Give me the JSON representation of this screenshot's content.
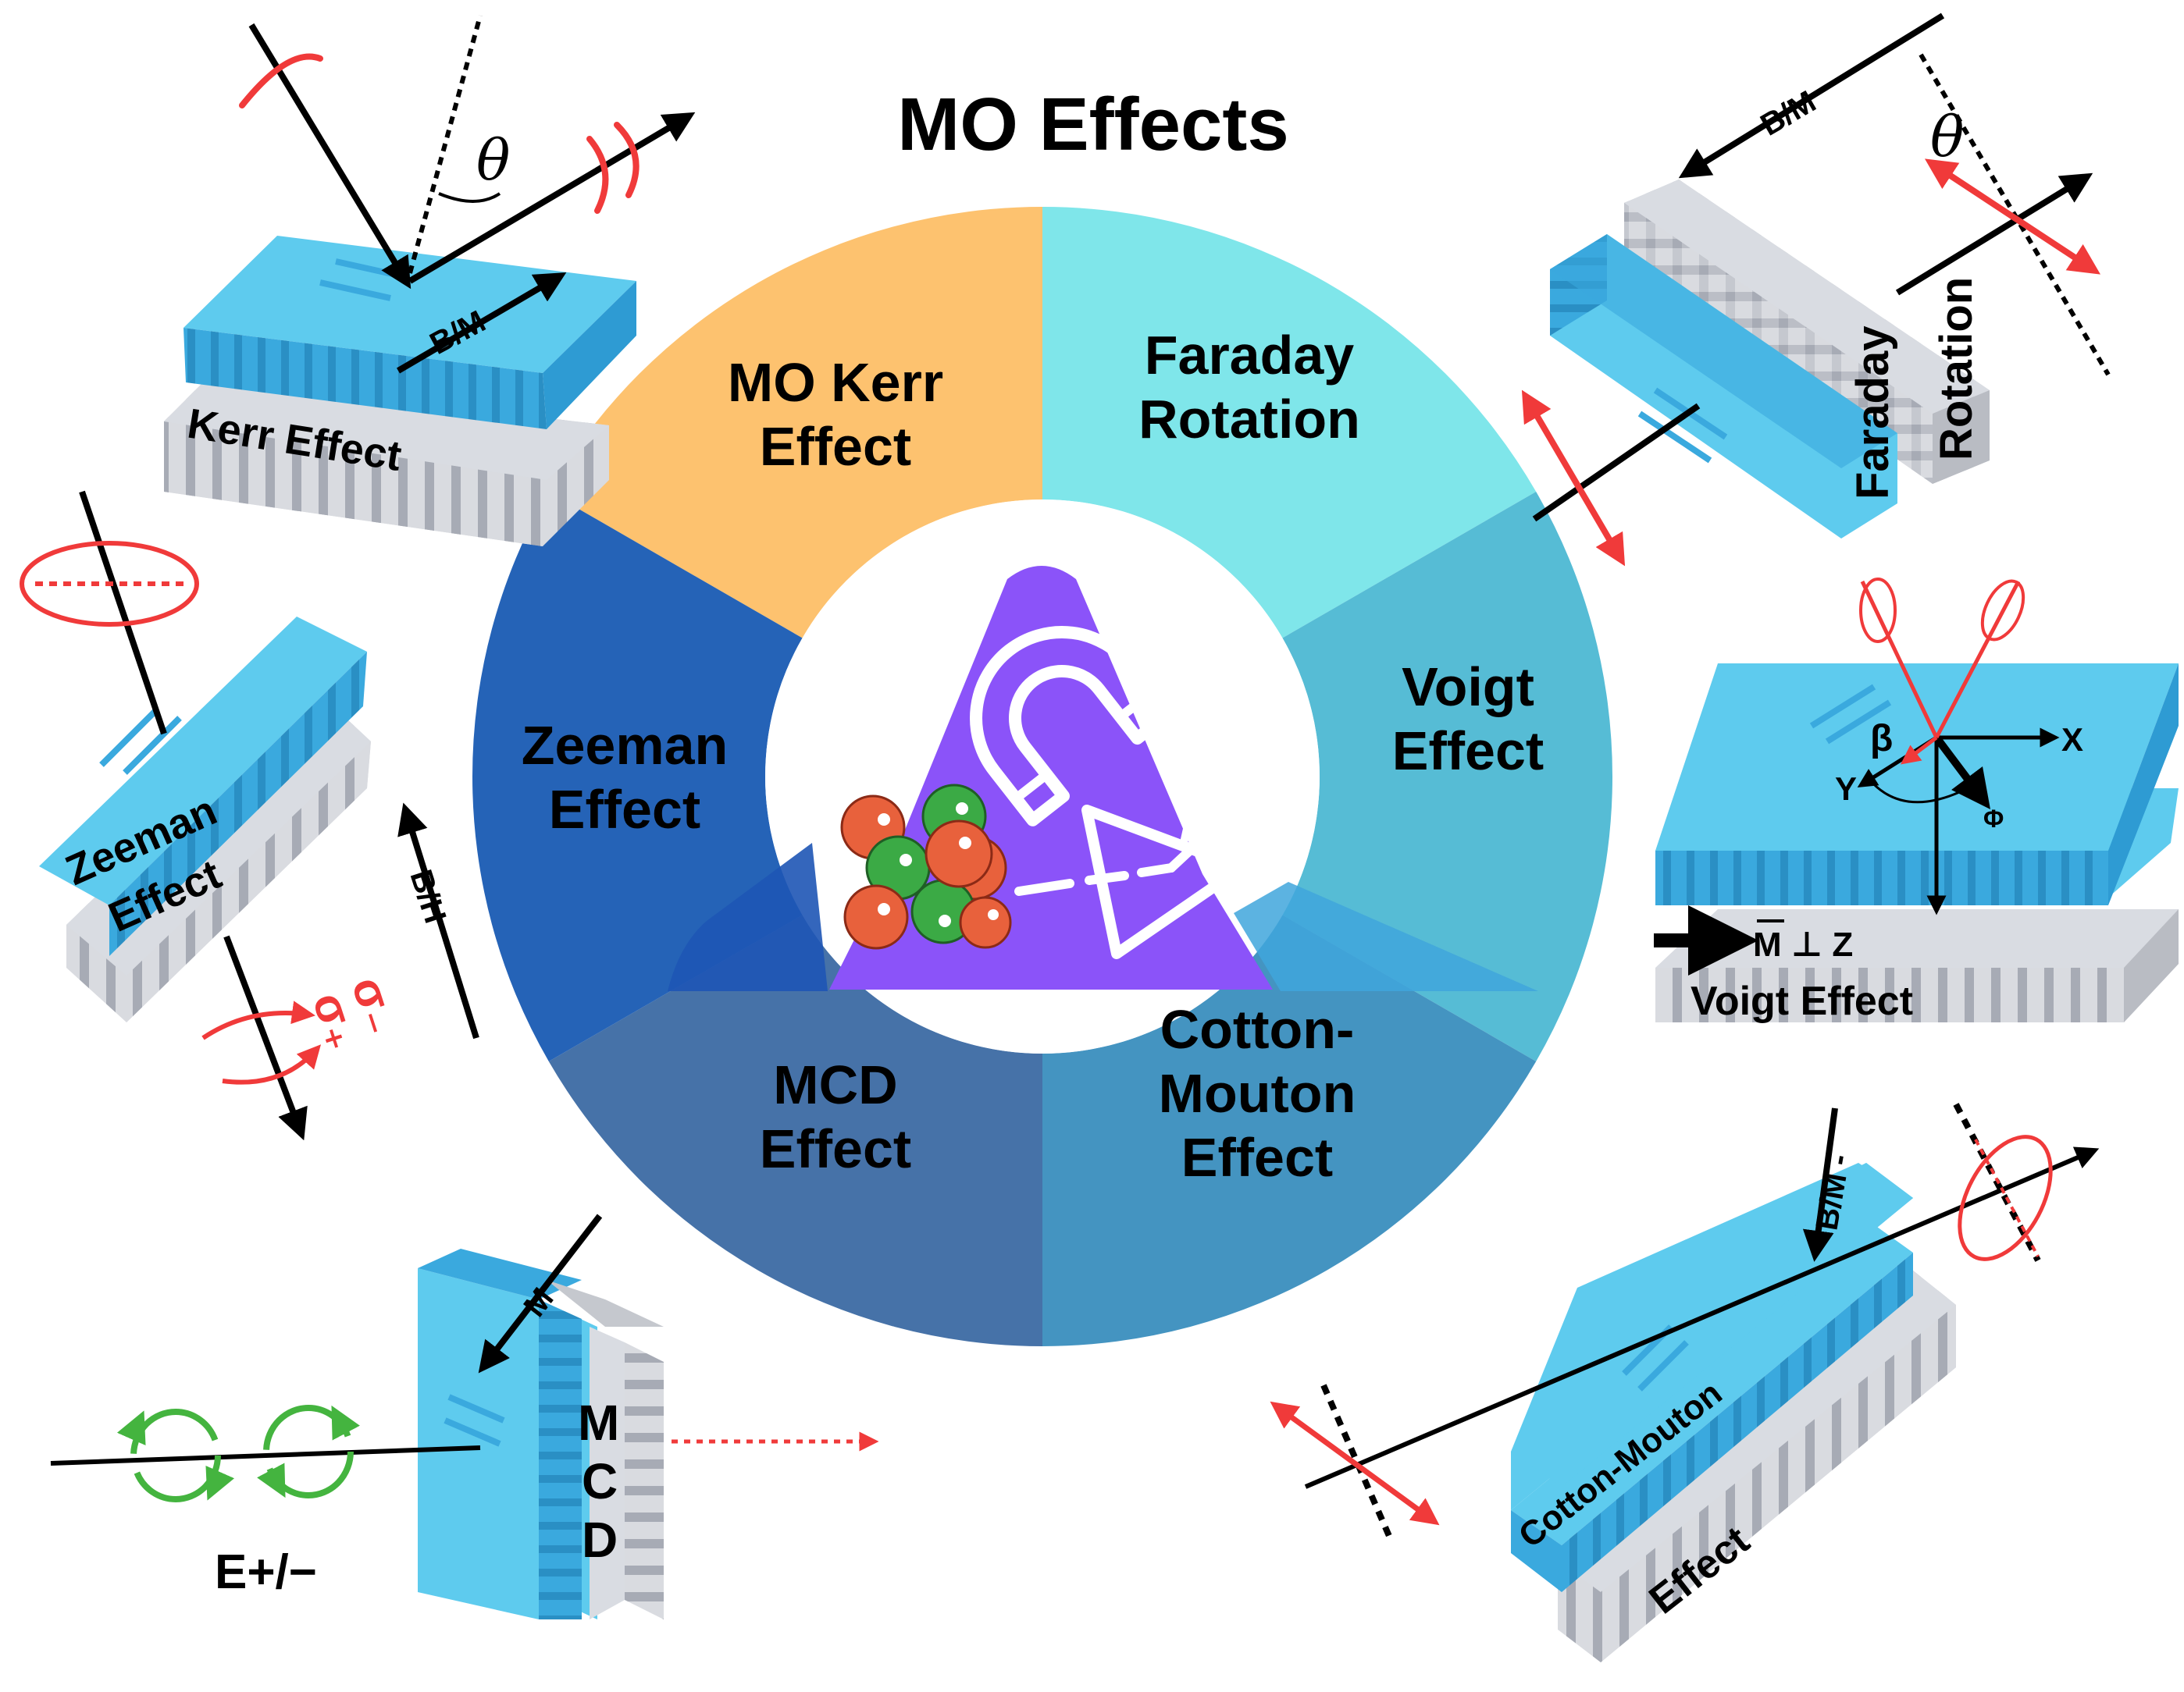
{
  "title": "MO Effects",
  "colors": {
    "kerr": "#FDC26F",
    "faraday": "#7FE6EA",
    "voigt": "#56BCD5",
    "cotton": "#4494C1",
    "mcd": "#4672A8",
    "zeeman": "#2563B7",
    "plate_top": "#5ECBEE",
    "plate_side": "#3AA9DE",
    "base": "#DCDEE3",
    "center": "#8B53F9",
    "accent_red": "#F03A3A",
    "accent_green": "#44B43F"
  },
  "wheel": {
    "segments": [
      {
        "id": "kerr",
        "lines": [
          "MO Kerr",
          "Effect"
        ]
      },
      {
        "id": "faraday",
        "lines": [
          "Faraday",
          "Rotation"
        ]
      },
      {
        "id": "voigt",
        "lines": [
          "Voigt",
          "Effect"
        ]
      },
      {
        "id": "cotton",
        "lines": [
          "Cotton-",
          "Mouton",
          "Effect"
        ]
      },
      {
        "id": "mcd",
        "lines": [
          "MCD",
          "Effect"
        ]
      },
      {
        "id": "zeeman",
        "lines": [
          "Zeeman",
          "Effect"
        ]
      }
    ]
  },
  "center_icon": "magnet-atom-prism-icon",
  "illustrations": {
    "kerr": {
      "plate_label": "Kerr Effect",
      "field_label": "B/M",
      "angle_symbol": "θ"
    },
    "faraday": {
      "plate_label_1": "Faraday",
      "plate_label_2": "Rotation",
      "field_label": "B/M",
      "angle_symbol": "θ"
    },
    "zeeman": {
      "plate_label_1": "Zeeman",
      "plate_label_2": "Effect",
      "field_label": "B/H",
      "sigma_plus": "σ₊",
      "sigma_minus": "σ₋"
    },
    "voigt": {
      "plate_label": "Voigt Effect",
      "beta": "β",
      "axis_x": "X",
      "axis_y": "Y",
      "phi": "Φ",
      "condition": "M ⊥ Z"
    },
    "mcd": {
      "letter_1": "M",
      "letter_2": "C",
      "letter_3": "D",
      "field_label": "M",
      "wave_label": "E+/−"
    },
    "cotton": {
      "plate_label_1": "Cotton-Mouton",
      "plate_label_2": "Effect",
      "field_label": "B/M -"
    }
  }
}
